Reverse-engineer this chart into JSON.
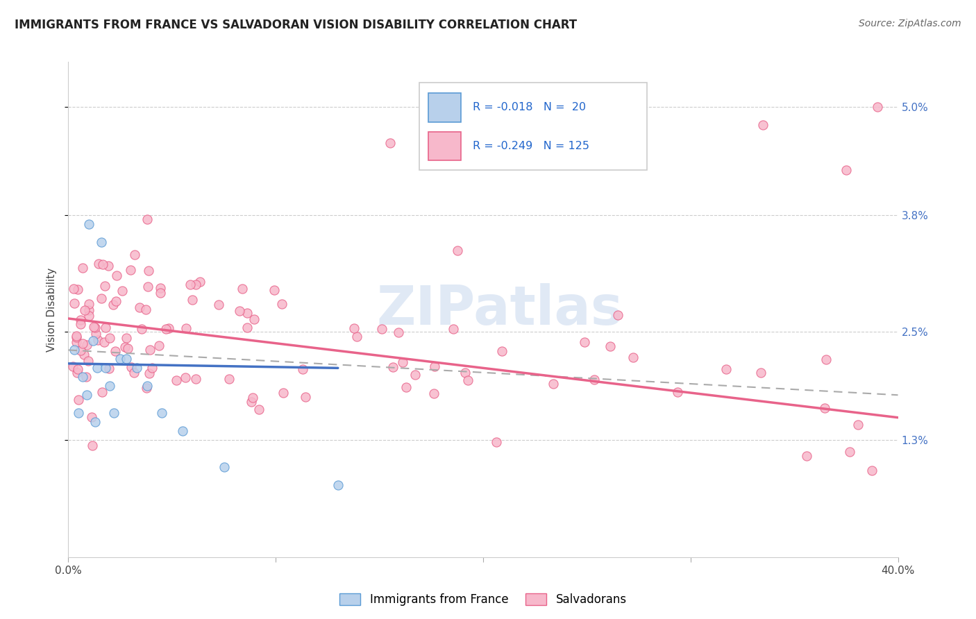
{
  "title": "IMMIGRANTS FROM FRANCE VS SALVADORAN VISION DISABILITY CORRELATION CHART",
  "source": "Source: ZipAtlas.com",
  "xlabel_france": "Immigrants from France",
  "xlabel_salvadoran": "Salvadorans",
  "ylabel": "Vision Disability",
  "r_france": -0.018,
  "n_france": 20,
  "r_salvadoran": -0.249,
  "n_salvadoran": 125,
  "color_france_fill": "#b8d0eb",
  "color_salvadoran_fill": "#f7b8cb",
  "color_france_edge": "#5b9bd5",
  "color_salvadoran_edge": "#e8638a",
  "color_france_line": "#4472c4",
  "color_salvadoran_line": "#e8638a",
  "color_dashed": "#aaaaaa",
  "watermark": "ZIPatlas",
  "xlim": [
    0.0,
    0.4
  ],
  "ylim_low": 0.0,
  "ylim_high": 0.055,
  "yticks": [
    0.013,
    0.025,
    0.038,
    0.05
  ],
  "ytick_labels": [
    "1.3%",
    "2.5%",
    "3.8%",
    "5.0%"
  ],
  "xticks": [
    0.0,
    0.1,
    0.2,
    0.3,
    0.4
  ],
  "xtick_labels": [
    "0.0%",
    "",
    "",
    "",
    "40.0%"
  ],
  "france_line_x0": 0.0,
  "france_line_x1": 0.13,
  "france_line_y0": 0.0215,
  "france_line_y1": 0.021,
  "salvadoran_line_x0": 0.0,
  "salvadoran_line_x1": 0.4,
  "salvadoran_line_y0": 0.0265,
  "salvadoran_line_y1": 0.0155,
  "dashed_line_x0": 0.0,
  "dashed_line_x1": 0.4,
  "dashed_line_y0": 0.023,
  "dashed_line_y1": 0.018
}
